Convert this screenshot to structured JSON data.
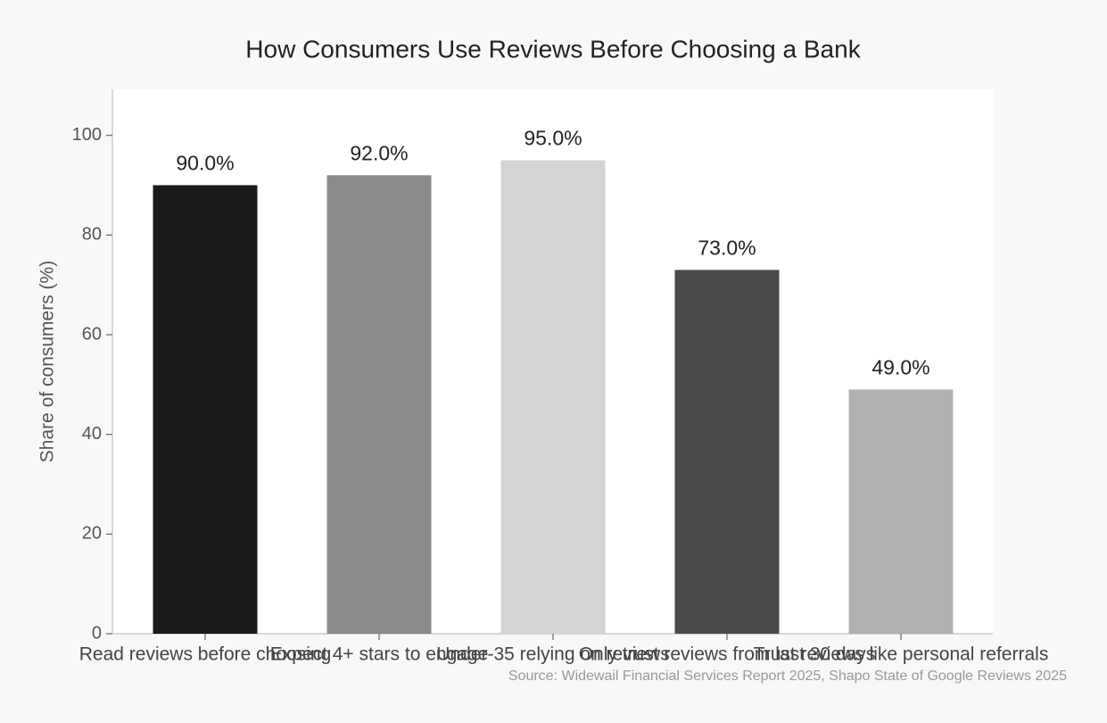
{
  "chart_data": {
    "type": "bar",
    "title": "How Consumers Use Reviews Before Choosing a Bank",
    "y_label": "Share of consumers (%)",
    "source": "Source: Widewail Financial Services Report 2025, Shapo State of Google Reviews 2025",
    "categories": [
      "Read reviews before choosing",
      "Expect 4+ stars to engage",
      "Under-35 relying on reviews",
      "Only trust reviews from last 30 days",
      "Trust reviews like personal referrals"
    ],
    "values": [
      90.0,
      92.0,
      95.0,
      73.0,
      49.0
    ],
    "value_labels": [
      "90.0%",
      "92.0%",
      "95.0%",
      "73.0%",
      "49.0%"
    ],
    "colors": [
      "#1b1b1b",
      "#8a8a8a",
      "#d4d4d4",
      "#4a4a4a",
      "#b0b0b0"
    ],
    "ylim": [
      0,
      109.25
    ],
    "yticks": [
      0,
      20,
      40,
      60,
      80,
      100
    ],
    "grid": false
  }
}
